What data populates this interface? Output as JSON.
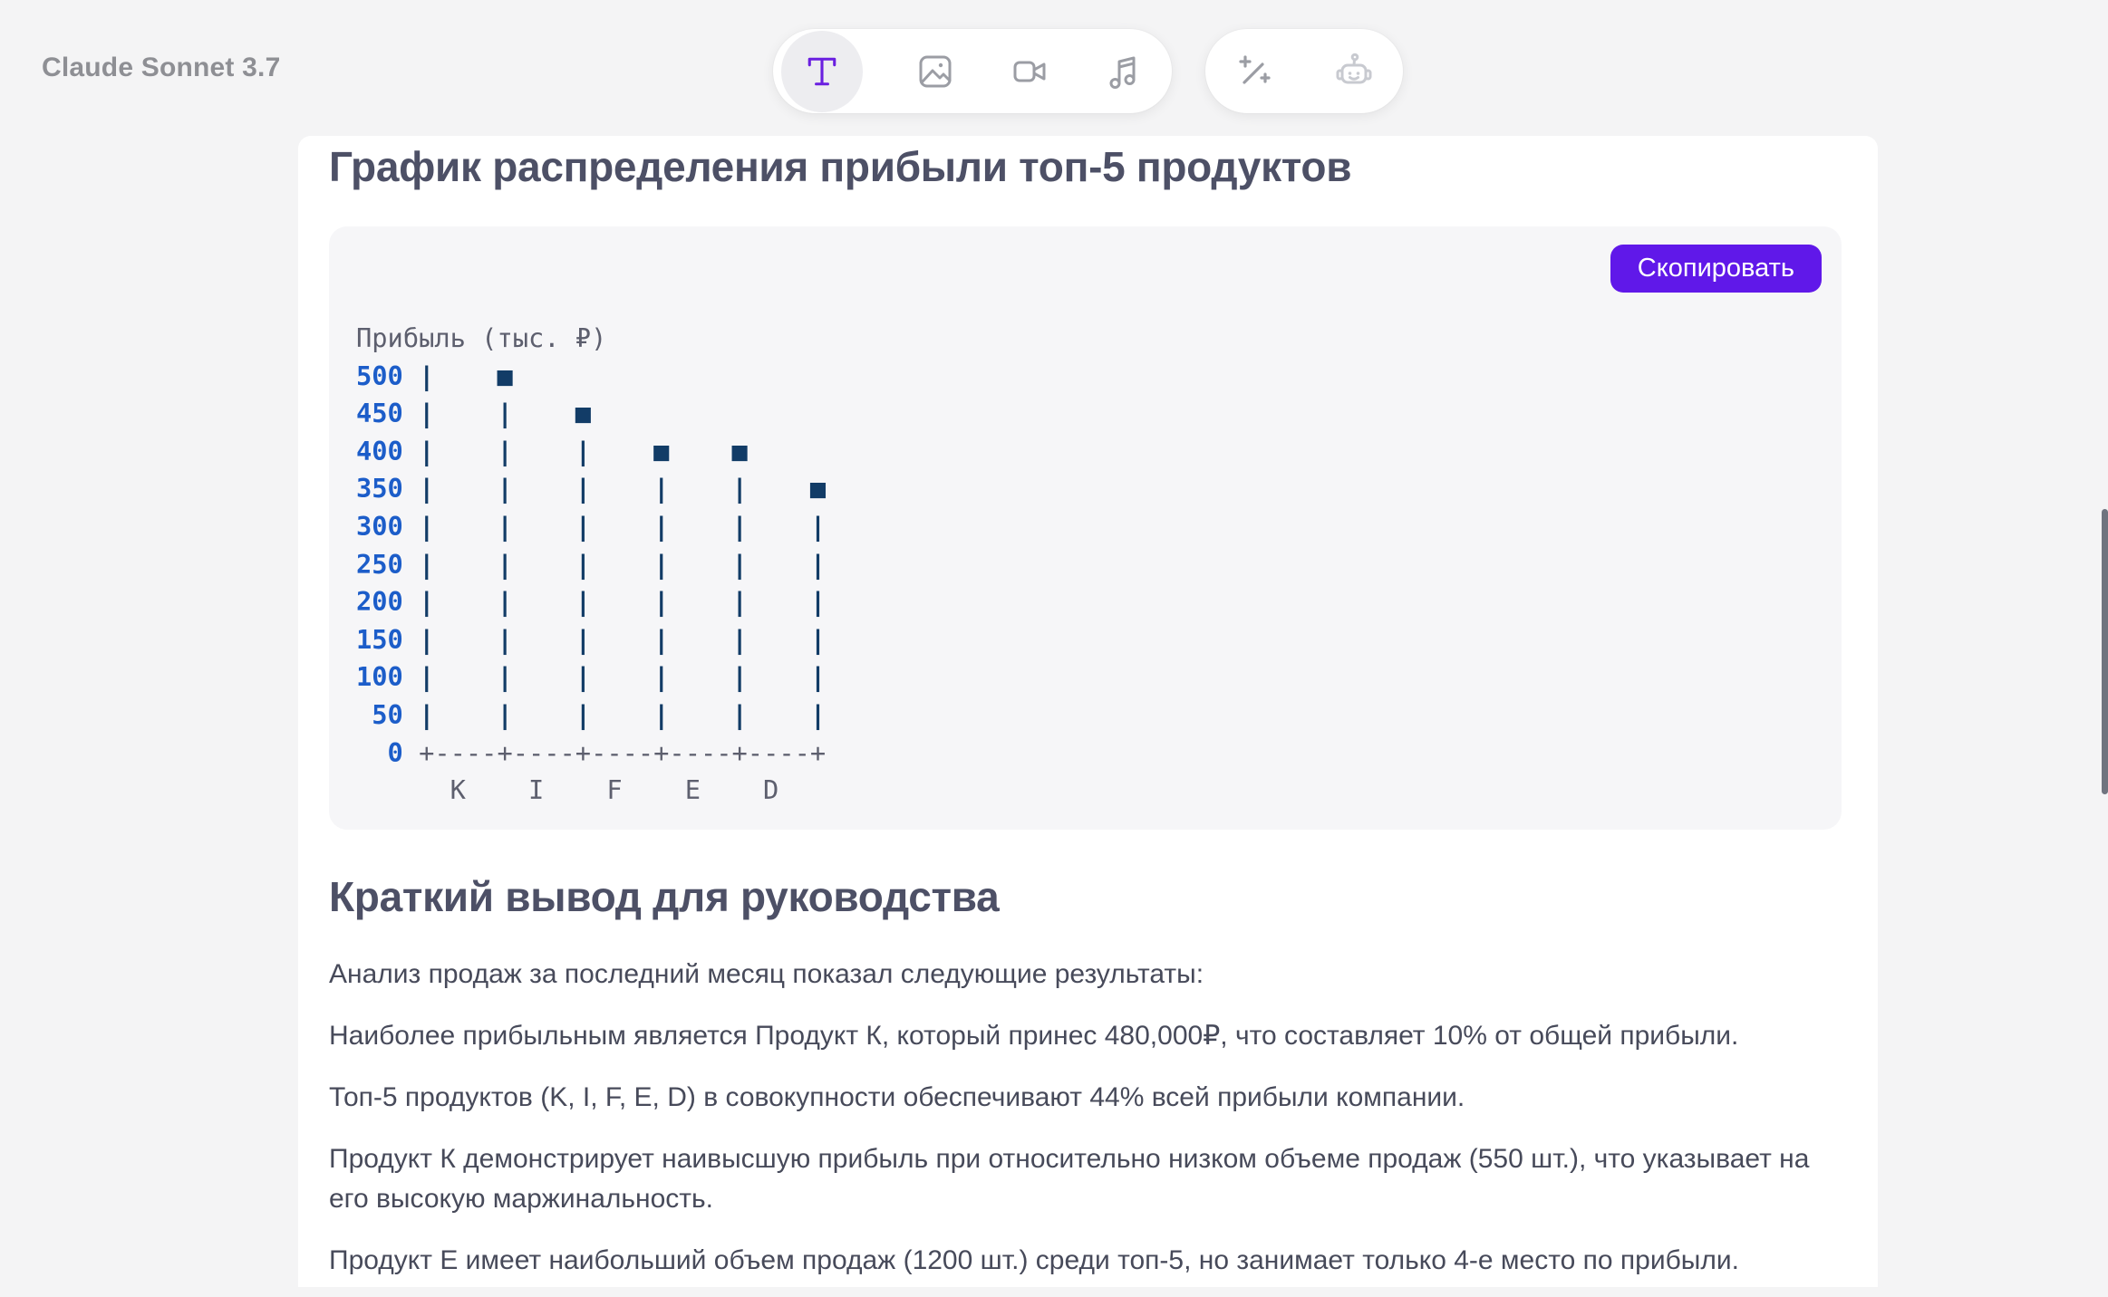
{
  "header": {
    "model_label": "Claude Sonnet 3.7"
  },
  "toolbar": {
    "group1": [
      {
        "icon": "text-icon",
        "active": true
      },
      {
        "icon": "image-icon",
        "active": false
      },
      {
        "icon": "video-icon",
        "active": false
      },
      {
        "icon": "music-icon",
        "active": false
      }
    ],
    "group2": [
      {
        "icon": "wand-icon",
        "active": false
      },
      {
        "icon": "robot-icon",
        "active": false
      }
    ]
  },
  "content": {
    "chart_heading": "График распределения прибыли топ-5 продуктов",
    "copy_button_label": "Скопировать",
    "summary_heading": "Краткий вывод для руководства",
    "paragraphs": [
      "Анализ продаж за последний месяц показал следующие результаты:",
      "Наиболее прибыльным является Продукт К, который принес 480,000₽, что составляет 10% от общей прибыли.",
      "Топ-5 продуктов (K, I, F, E, D) в совокупности обеспечивают 44% всей прибыли компании.",
      "Продукт К демонстрирует наивысшую прибыль при относительно низком объеме продаж (550 шт.), что указывает на его высокую маржинальность.",
      "Продукт E имеет наибольший объем продаж (1200 шт.) среди топ-5, но занимает только 4-е место по прибыли."
    ]
  },
  "chart_data": {
    "type": "bar",
    "title": "Прибыль (тыс. ₽)",
    "ylabel": "Прибыль (тыс. ₽)",
    "categories": [
      "K",
      "I",
      "F",
      "E",
      "D"
    ],
    "values": [
      500,
      450,
      400,
      400,
      350
    ],
    "values_note": "уровни маркеров ASCII-графика в тыс. ₽; из текста известно точное значение K = 480 тыс. ₽",
    "ylim": [
      0,
      500
    ],
    "yticks": [
      500,
      450,
      400,
      350,
      300,
      250,
      200,
      150,
      100,
      50,
      0
    ],
    "grid": false,
    "legend": false,
    "colors": {
      "tick": "#1c5dc9",
      "stem": "#123c67",
      "label": "#5d5f6e"
    },
    "ascii_rows": [
      [
        {
          "c": "lbl",
          "t": "Прибыль (тыс. ₽)"
        }
      ],
      [
        {
          "c": "num",
          "t": "500 "
        },
        {
          "c": "bar",
          "t": "|    ■"
        }
      ],
      [
        {
          "c": "num",
          "t": "450 "
        },
        {
          "c": "bar",
          "t": "|    |    ■"
        }
      ],
      [
        {
          "c": "num",
          "t": "400 "
        },
        {
          "c": "bar",
          "t": "|    |    |    ■    ■"
        }
      ],
      [
        {
          "c": "num",
          "t": "350 "
        },
        {
          "c": "bar",
          "t": "|    |    |    |    |    ■"
        }
      ],
      [
        {
          "c": "num",
          "t": "300 "
        },
        {
          "c": "bar",
          "t": "|    |    |    |    |    |"
        }
      ],
      [
        {
          "c": "num",
          "t": "250 "
        },
        {
          "c": "bar",
          "t": "|    |    |    |    |    |"
        }
      ],
      [
        {
          "c": "num",
          "t": "200 "
        },
        {
          "c": "bar",
          "t": "|    |    |    |    |    |"
        }
      ],
      [
        {
          "c": "num",
          "t": "150 "
        },
        {
          "c": "bar",
          "t": "|    |    |    |    |    |"
        }
      ],
      [
        {
          "c": "num",
          "t": "100 "
        },
        {
          "c": "bar",
          "t": "|    |    |    |    |    |"
        }
      ],
      [
        {
          "c": "num",
          "t": " 50 "
        },
        {
          "c": "bar",
          "t": "|    |    |    |    |    |"
        }
      ],
      [
        {
          "c": "num",
          "t": "  0 "
        },
        {
          "c": "axis",
          "t": "+----+----+----+----+----+"
        }
      ],
      [
        {
          "c": "lbl",
          "t": "      K    I    F    E    D"
        }
      ]
    ]
  }
}
